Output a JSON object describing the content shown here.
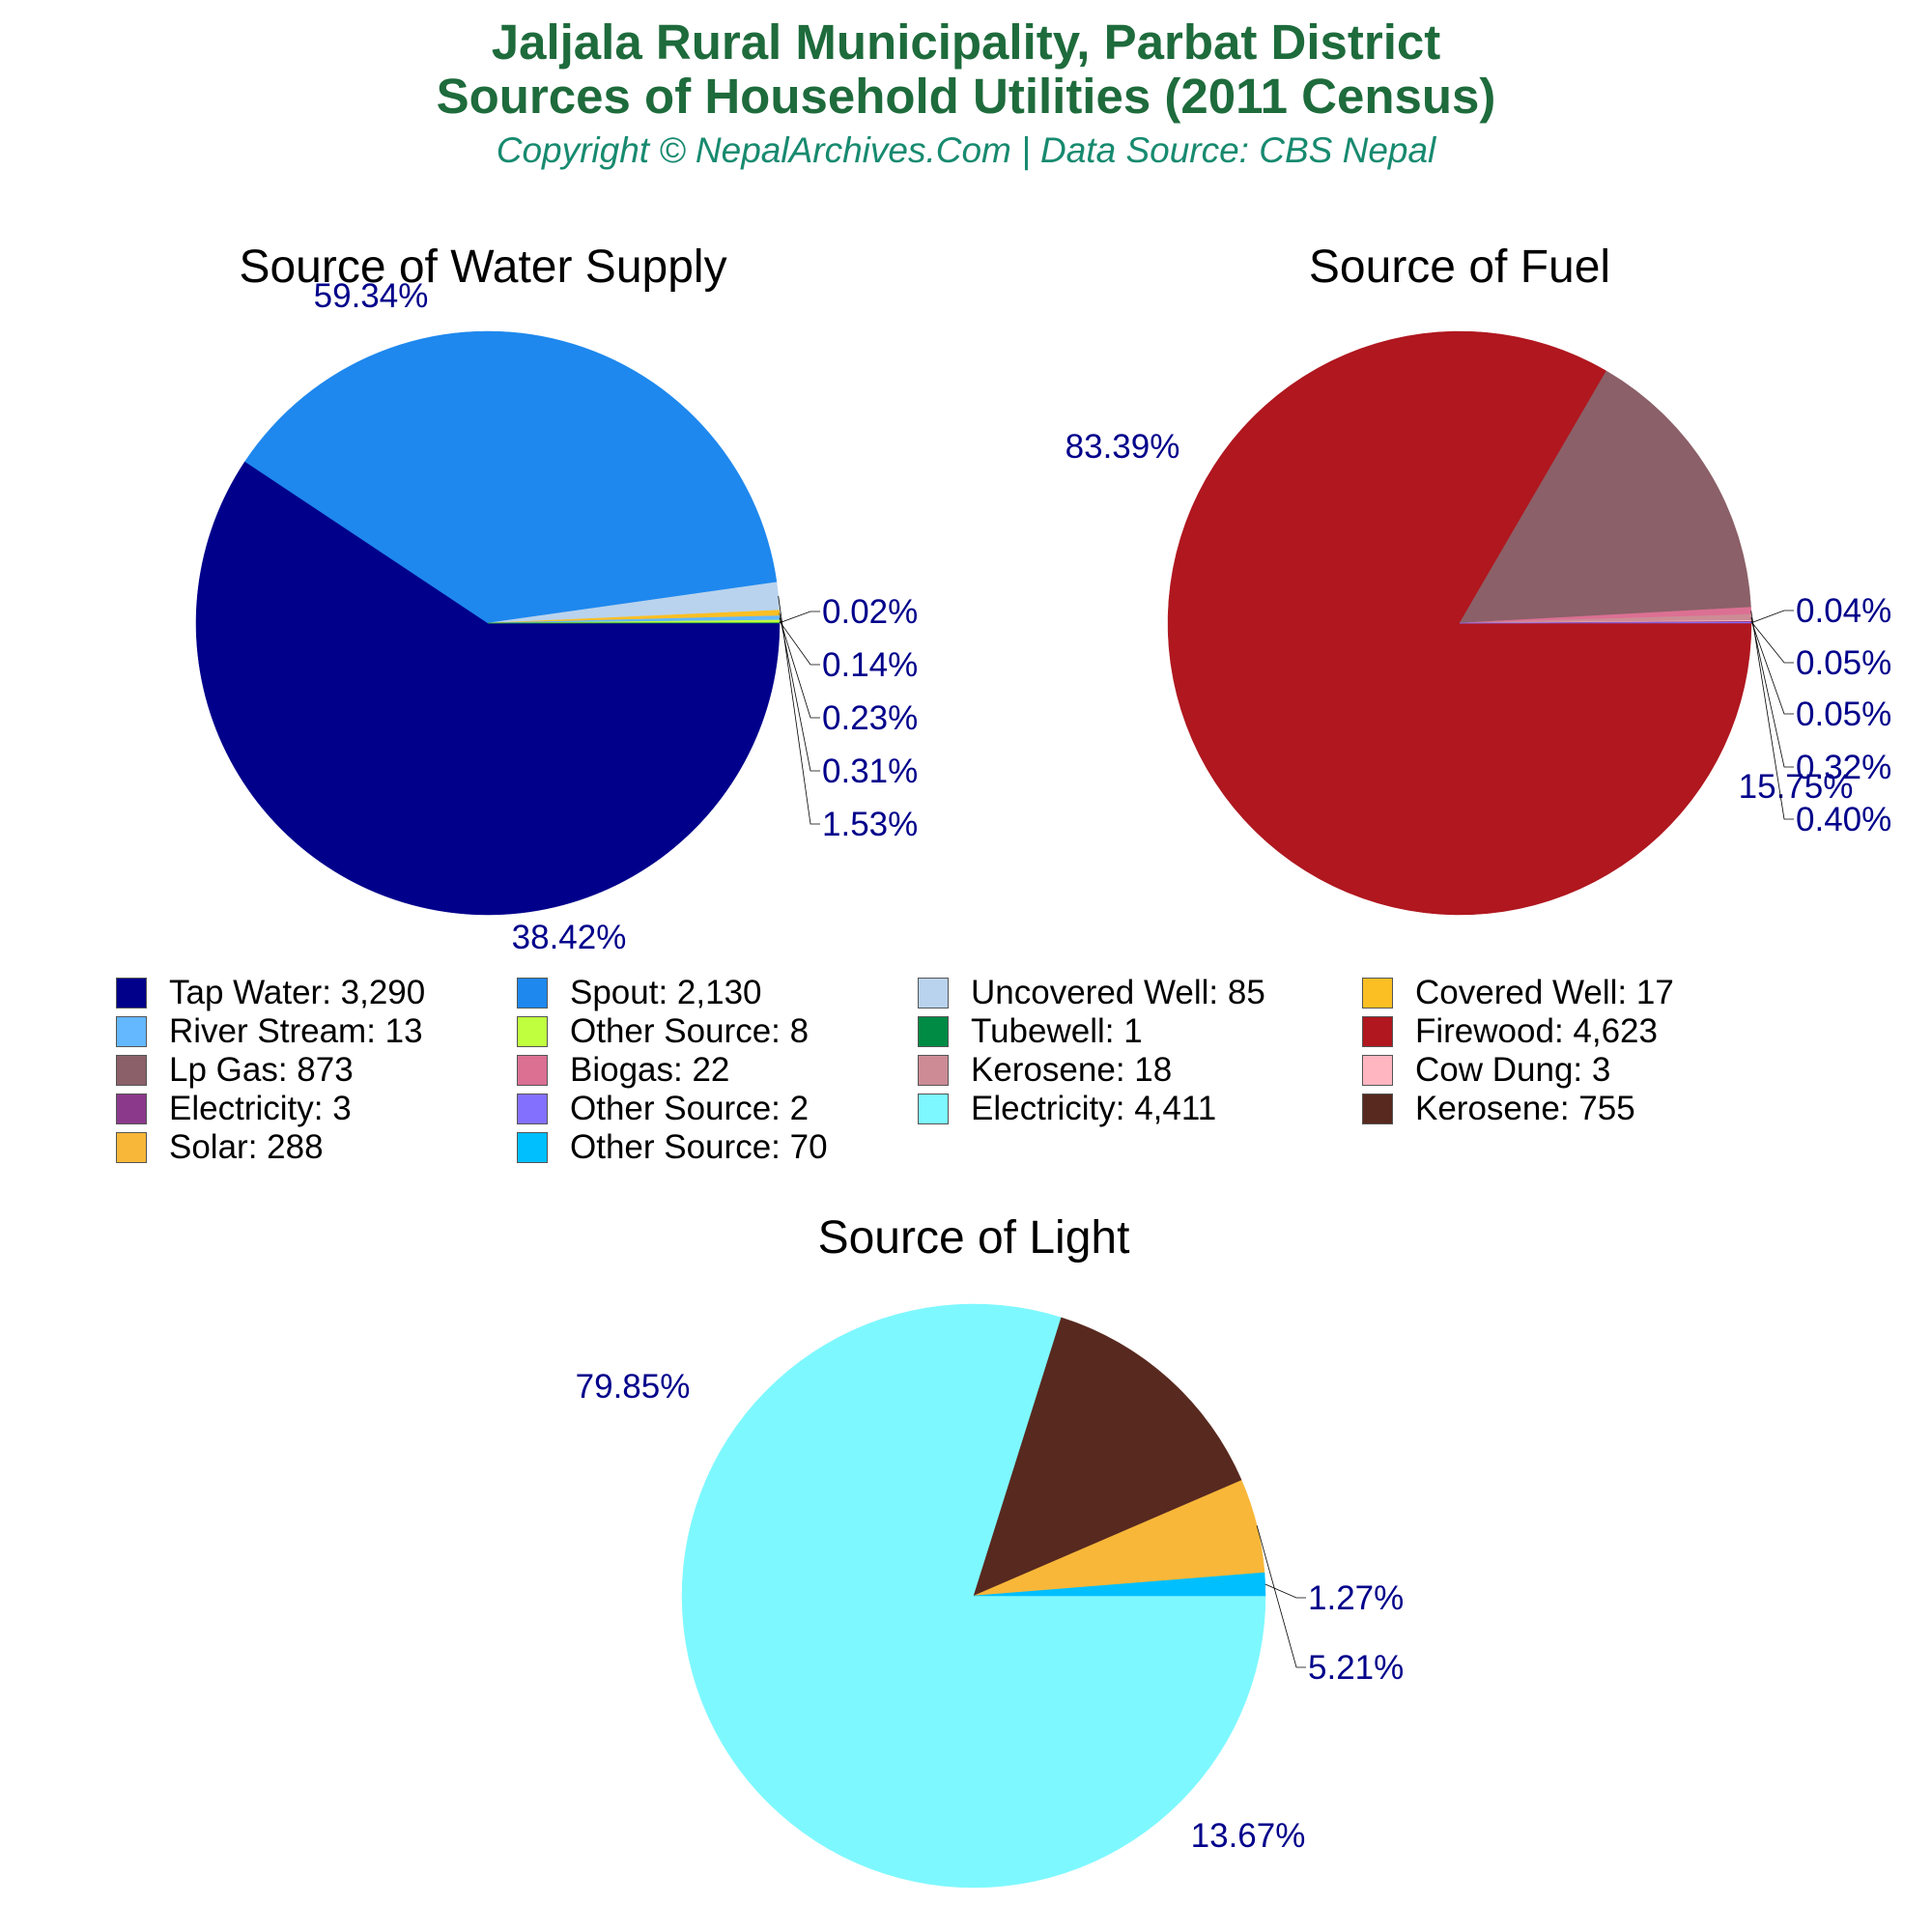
{
  "header": {
    "title_line1": "Jaljala Rural Municipality, Parbat District",
    "title_line2": "Sources of Household Utilities (2011 Census)",
    "subtitle": "Copyright © NepalArchives.Com | Data Source: CBS Nepal"
  },
  "chart_data": [
    {
      "type": "pie",
      "title": "Source of Water Supply",
      "slices": [
        {
          "label": "Tap Water",
          "value": 3290,
          "pct_label": "59.34%",
          "color": "#00008b"
        },
        {
          "label": "Spout",
          "value": 2130,
          "pct_label": "38.42%",
          "color": "#1e88ee"
        },
        {
          "label": "Uncovered Well",
          "value": 85,
          "pct_label": "1.53%",
          "color": "#b9d3ee"
        },
        {
          "label": "Covered Well",
          "value": 17,
          "pct_label": "0.31%",
          "color": "#fbbf24"
        },
        {
          "label": "River Stream",
          "value": 13,
          "pct_label": "0.23%",
          "color": "#63b8ff"
        },
        {
          "label": "Other Source",
          "value": 8,
          "pct_label": "0.14%",
          "color": "#c0ff3e"
        },
        {
          "label": "Tubewell",
          "value": 1,
          "pct_label": "0.02%",
          "color": "#008b45"
        }
      ]
    },
    {
      "type": "pie",
      "title": "Source of Fuel",
      "slices": [
        {
          "label": "Firewood",
          "value": 4623,
          "pct_label": "83.39%",
          "color": "#b0171f"
        },
        {
          "label": "Lp Gas",
          "value": 873,
          "pct_label": "15.75%",
          "color": "#8b6068"
        },
        {
          "label": "Biogas",
          "value": 22,
          "pct_label": "0.40%",
          "color": "#db7093"
        },
        {
          "label": "Kerosene",
          "value": 18,
          "pct_label": "0.32%",
          "color": "#cd8c95"
        },
        {
          "label": "Cow Dung",
          "value": 3,
          "pct_label": "0.05%",
          "color": "#ffb6c1"
        },
        {
          "label": "Electricity",
          "value": 3,
          "pct_label": "0.05%",
          "color": "#8b3a8b"
        },
        {
          "label": "Other Source",
          "value": 2,
          "pct_label": "0.04%",
          "color": "#8470ff"
        }
      ]
    },
    {
      "type": "pie",
      "title": "Source of Light",
      "slices": [
        {
          "label": "Electricity",
          "value": 4411,
          "pct_label": "79.85%",
          "color": "#7ef8ff"
        },
        {
          "label": "Kerosene",
          "value": 755,
          "pct_label": "13.67%",
          "color": "#58291f"
        },
        {
          "label": "Solar",
          "value": 288,
          "pct_label": "5.21%",
          "color": "#f8b739"
        },
        {
          "label": "Other Source",
          "value": 70,
          "pct_label": "1.27%",
          "color": "#00bfff"
        }
      ]
    }
  ],
  "legend": {
    "items": [
      {
        "label": "Tap Water: 3,290",
        "color": "#00008b"
      },
      {
        "label": "Spout: 2,130",
        "color": "#1e88ee"
      },
      {
        "label": "Uncovered Well: 85",
        "color": "#b9d3ee"
      },
      {
        "label": "Covered Well: 17",
        "color": "#fbbf24"
      },
      {
        "label": "River Stream: 13",
        "color": "#63b8ff"
      },
      {
        "label": "Other Source: 8",
        "color": "#c0ff3e"
      },
      {
        "label": "Tubewell: 1",
        "color": "#008b45"
      },
      {
        "label": "Firewood: 4,623",
        "color": "#b0171f"
      },
      {
        "label": "Lp Gas: 873",
        "color": "#8b6068"
      },
      {
        "label": "Biogas: 22",
        "color": "#db7093"
      },
      {
        "label": "Kerosene: 18",
        "color": "#cd8c95"
      },
      {
        "label": "Cow Dung: 3",
        "color": "#ffb6c1"
      },
      {
        "label": "Electricity: 3",
        "color": "#8b3a8b"
      },
      {
        "label": "Other Source: 2",
        "color": "#8470ff"
      },
      {
        "label": "Electricity: 4,411",
        "color": "#7ef8ff"
      },
      {
        "label": "Kerosene: 755",
        "color": "#58291f"
      },
      {
        "label": "Solar: 288",
        "color": "#f8b739"
      },
      {
        "label": "Other Source: 70",
        "color": "#00bfff"
      }
    ]
  },
  "colors": {
    "title": "#1e6b3c",
    "subtitle": "#178a6f",
    "pct_label": "#00008b"
  }
}
